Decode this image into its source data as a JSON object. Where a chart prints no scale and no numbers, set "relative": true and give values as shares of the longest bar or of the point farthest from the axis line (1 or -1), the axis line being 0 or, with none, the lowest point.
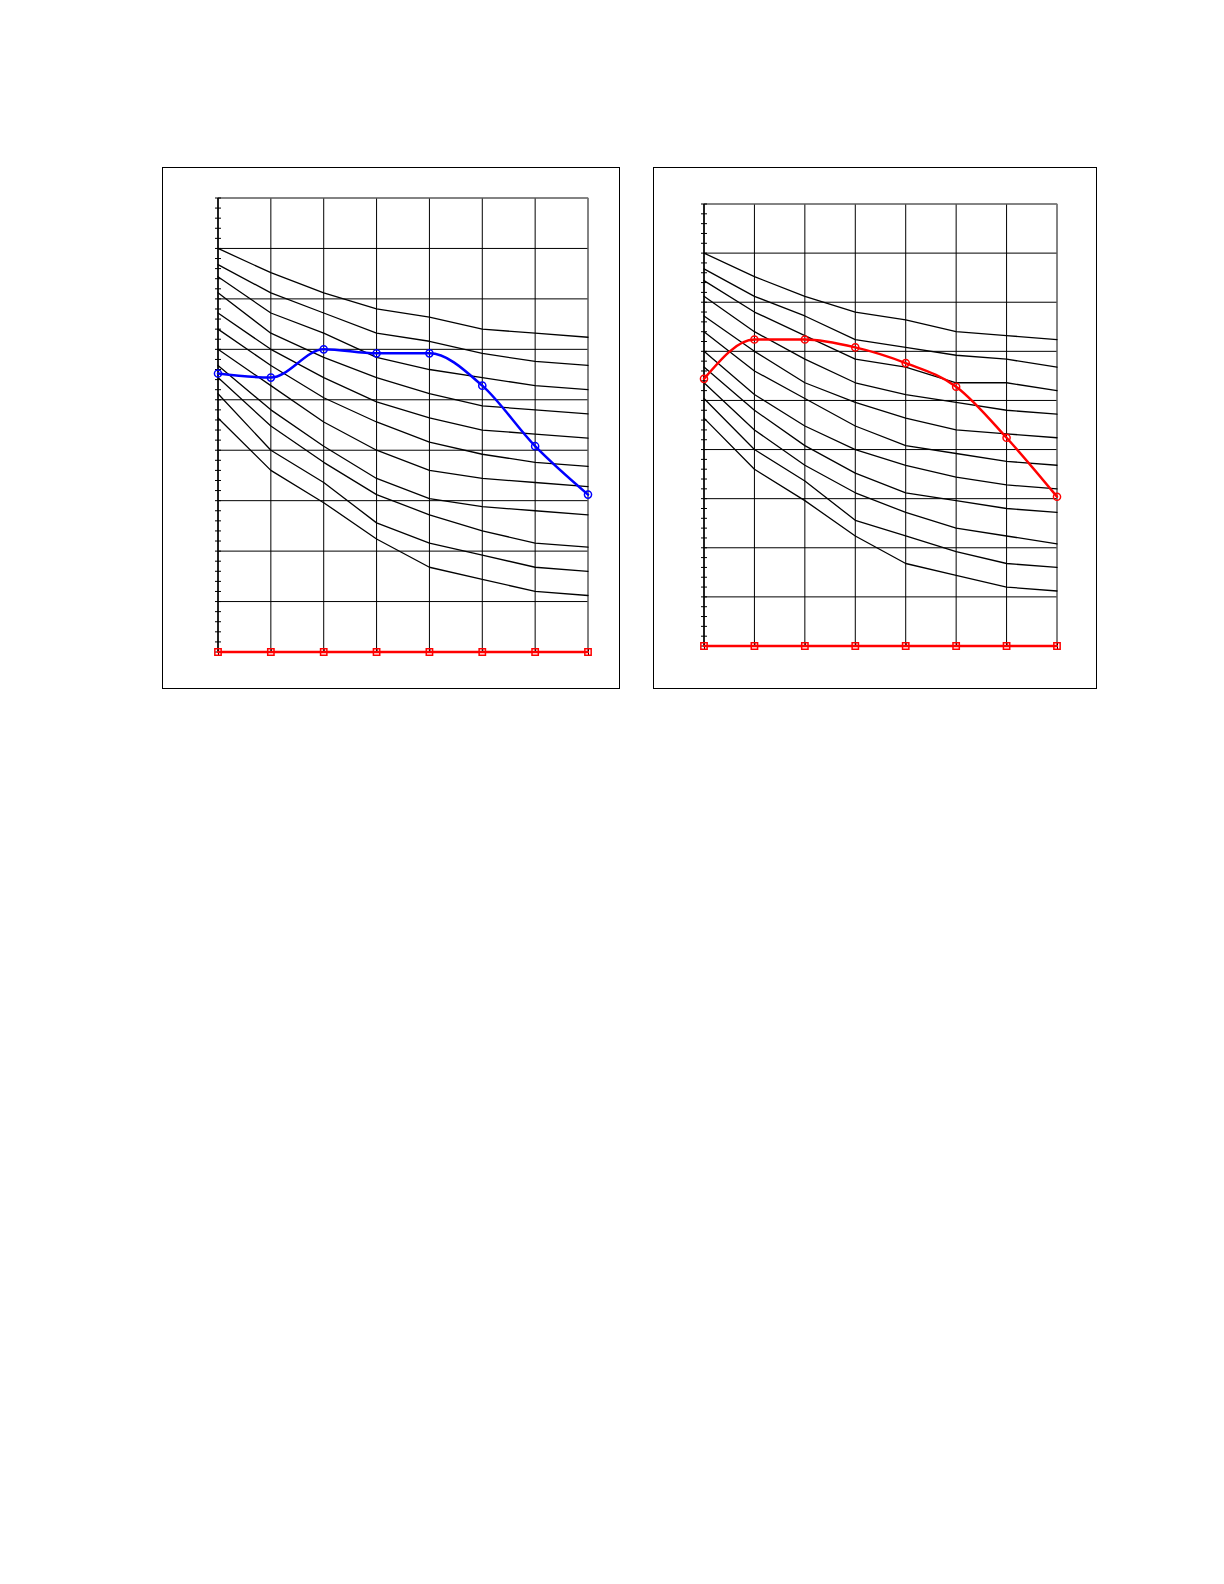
{
  "chart_data": [
    {
      "type": "line",
      "relative": true,
      "categories": [
        null,
        null,
        null,
        null,
        null,
        null,
        null,
        null
      ],
      "grid": true,
      "series": [
        {
          "color": "#000000",
          "marker": "none",
          "values": [
            1.0,
            0.94,
            0.89,
            0.85,
            0.83,
            0.8,
            0.79,
            0.78
          ]
        },
        {
          "color": "#000000",
          "marker": "none",
          "values": [
            0.96,
            0.89,
            0.84,
            0.79,
            0.77,
            0.74,
            0.72,
            0.71
          ]
        },
        {
          "color": "#000000",
          "marker": "none",
          "values": [
            0.93,
            0.84,
            0.79,
            0.73,
            0.7,
            0.68,
            0.66,
            0.65
          ]
        },
        {
          "color": "#000000",
          "marker": "none",
          "values": [
            0.89,
            0.79,
            0.73,
            0.68,
            0.64,
            0.61,
            0.6,
            0.59
          ]
        },
        {
          "color": "#000000",
          "marker": "none",
          "values": [
            0.84,
            0.75,
            0.68,
            0.62,
            0.58,
            0.55,
            0.54,
            0.53
          ]
        },
        {
          "color": "#000000",
          "marker": "none",
          "values": [
            0.8,
            0.71,
            0.63,
            0.57,
            0.52,
            0.49,
            0.47,
            0.46
          ]
        },
        {
          "color": "#000000",
          "marker": "none",
          "values": [
            0.75,
            0.66,
            0.57,
            0.5,
            0.45,
            0.43,
            0.42,
            0.41
          ]
        },
        {
          "color": "#000000",
          "marker": "none",
          "values": [
            0.71,
            0.6,
            0.51,
            0.43,
            0.38,
            0.36,
            0.35,
            0.34
          ]
        },
        {
          "color": "#000000",
          "marker": "none",
          "values": [
            0.68,
            0.56,
            0.47,
            0.39,
            0.34,
            0.3,
            0.27,
            0.26
          ]
        },
        {
          "color": "#000000",
          "marker": "none",
          "values": [
            0.64,
            0.5,
            0.42,
            0.32,
            0.27,
            0.24,
            0.21,
            0.2
          ]
        },
        {
          "color": "#000000",
          "marker": "none",
          "values": [
            0.58,
            0.45,
            0.37,
            0.28,
            0.21,
            0.18,
            0.15,
            0.14
          ]
        },
        {
          "color": "#0000ff",
          "marker": "circle",
          "values": [
            0.69,
            0.68,
            0.75,
            0.74,
            0.74,
            0.66,
            0.51,
            0.39
          ]
        },
        {
          "color": "#ff0000",
          "marker": "square",
          "values": [
            0,
            0,
            0,
            0,
            0,
            0,
            0,
            0
          ]
        }
      ]
    },
    {
      "type": "line",
      "relative": true,
      "categories": [
        null,
        null,
        null,
        null,
        null,
        null,
        null,
        null
      ],
      "grid": true,
      "series": [
        {
          "color": "#000000",
          "marker": "none",
          "values": [
            1.0,
            0.94,
            0.89,
            0.85,
            0.83,
            0.8,
            0.79,
            0.78
          ]
        },
        {
          "color": "#000000",
          "marker": "none",
          "values": [
            0.96,
            0.89,
            0.84,
            0.78,
            0.76,
            0.74,
            0.73,
            0.71
          ]
        },
        {
          "color": "#000000",
          "marker": "none",
          "values": [
            0.93,
            0.85,
            0.79,
            0.73,
            0.71,
            0.67,
            0.67,
            0.65
          ]
        },
        {
          "color": "#000000",
          "marker": "none",
          "values": [
            0.89,
            0.8,
            0.73,
            0.67,
            0.64,
            0.62,
            0.6,
            0.59
          ]
        },
        {
          "color": "#000000",
          "marker": "none",
          "values": [
            0.84,
            0.75,
            0.67,
            0.62,
            0.58,
            0.55,
            0.54,
            0.53
          ]
        },
        {
          "color": "#000000",
          "marker": "none",
          "values": [
            0.8,
            0.7,
            0.63,
            0.56,
            0.51,
            0.49,
            0.47,
            0.46
          ]
        },
        {
          "color": "#000000",
          "marker": "none",
          "values": [
            0.75,
            0.64,
            0.56,
            0.5,
            0.46,
            0.43,
            0.41,
            0.4
          ]
        },
        {
          "color": "#000000",
          "marker": "none",
          "values": [
            0.71,
            0.6,
            0.51,
            0.44,
            0.39,
            0.37,
            0.35,
            0.34
          ]
        },
        {
          "color": "#000000",
          "marker": "none",
          "values": [
            0.67,
            0.55,
            0.46,
            0.39,
            0.34,
            0.3,
            0.28,
            0.26
          ]
        },
        {
          "color": "#000000",
          "marker": "none",
          "values": [
            0.63,
            0.5,
            0.42,
            0.32,
            0.28,
            0.24,
            0.21,
            0.2
          ]
        },
        {
          "color": "#000000",
          "marker": "none",
          "values": [
            0.58,
            0.45,
            0.37,
            0.28,
            0.21,
            0.18,
            0.15,
            0.14
          ]
        },
        {
          "color": "#ff0000",
          "marker": "circle",
          "values": [
            0.68,
            0.78,
            0.78,
            0.76,
            0.72,
            0.66,
            0.53,
            0.38
          ]
        },
        {
          "color": "#ff0000",
          "marker": "square",
          "values": [
            0,
            0,
            0,
            0,
            0,
            0,
            0,
            0
          ]
        }
      ]
    }
  ]
}
